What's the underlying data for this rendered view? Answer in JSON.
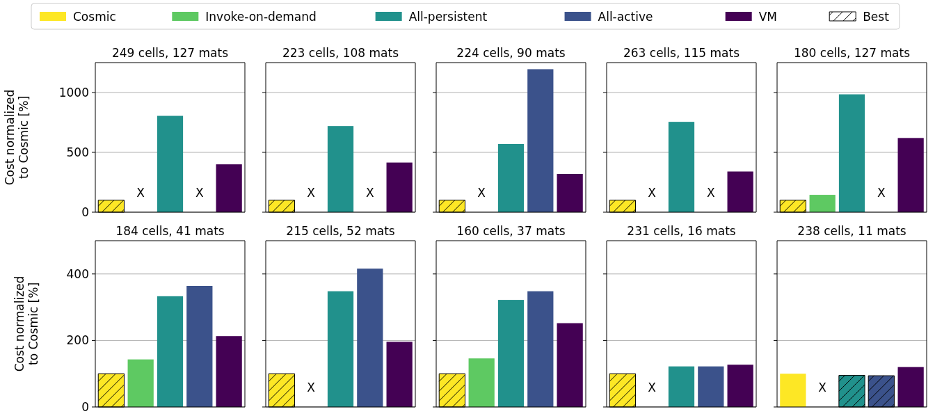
{
  "chart_data": [
    {
      "type": "bar",
      "ylabel": "Cost normalized\nto Cosmic [%]",
      "categories": [
        "249 cells, 127 mats",
        "223 cells, 108 mats",
        "224 cells, 90 mats",
        "263 cells, 115 mats",
        "180 cells, 127 mats"
      ],
      "ylim": [
        0,
        1250
      ],
      "yticks": [
        0,
        500,
        1000
      ],
      "grid": "y",
      "legend": "top",
      "series": [
        {
          "name": "Cosmic",
          "color": "#fde725",
          "values": [
            100,
            100,
            100,
            100,
            100
          ]
        },
        {
          "name": "Invoke-on-demand",
          "color": "#5ec962",
          "values": [
            null,
            null,
            null,
            null,
            145
          ],
          "value_labels": [
            "X",
            "X",
            "X",
            "X",
            null
          ]
        },
        {
          "name": "All-persistent",
          "color": "#21918c",
          "values": [
            805,
            720,
            570,
            755,
            985
          ]
        },
        {
          "name": "All-active",
          "color": "#3b528b",
          "values": [
            null,
            null,
            1195,
            null,
            null
          ],
          "value_labels": [
            "X",
            "X",
            null,
            "X",
            "X"
          ]
        },
        {
          "name": "VM",
          "color": "#440154",
          "values": [
            400,
            415,
            320,
            340,
            620
          ]
        },
        {
          "name": "Best",
          "color": "#000000",
          "values": [
            null,
            null,
            null,
            null,
            null
          ]
        }
      ]
    },
    {
      "type": "bar",
      "ylabel": "Cost normalized\nto Cosmic [%]",
      "categories": [
        "184 cells, 41 mats",
        "215 cells, 52 mats",
        "160 cells, 37 mats",
        "231 cells, 16 mats",
        "238 cells, 11 mats"
      ],
      "ylim": [
        0,
        500
      ],
      "yticks": [
        0,
        200,
        400
      ],
      "grid": "y",
      "series": [
        {
          "name": "Cosmic",
          "color": "#fde725",
          "values": [
            100,
            100,
            100,
            100,
            100
          ]
        },
        {
          "name": "Invoke-on-demand",
          "color": "#5ec962",
          "values": [
            143,
            null,
            146,
            null,
            null
          ],
          "value_labels": [
            null,
            "X",
            null,
            "X",
            "X"
          ]
        },
        {
          "name": "All-persistent",
          "color": "#21918c",
          "values": [
            333,
            348,
            322,
            122,
            95
          ]
        },
        {
          "name": "All-active",
          "color": "#3b528b",
          "values": [
            364,
            416,
            348,
            122,
            94
          ]
        },
        {
          "name": "VM",
          "color": "#440154",
          "values": [
            213,
            196,
            252,
            127,
            120
          ]
        }
      ]
    }
  ]
}
